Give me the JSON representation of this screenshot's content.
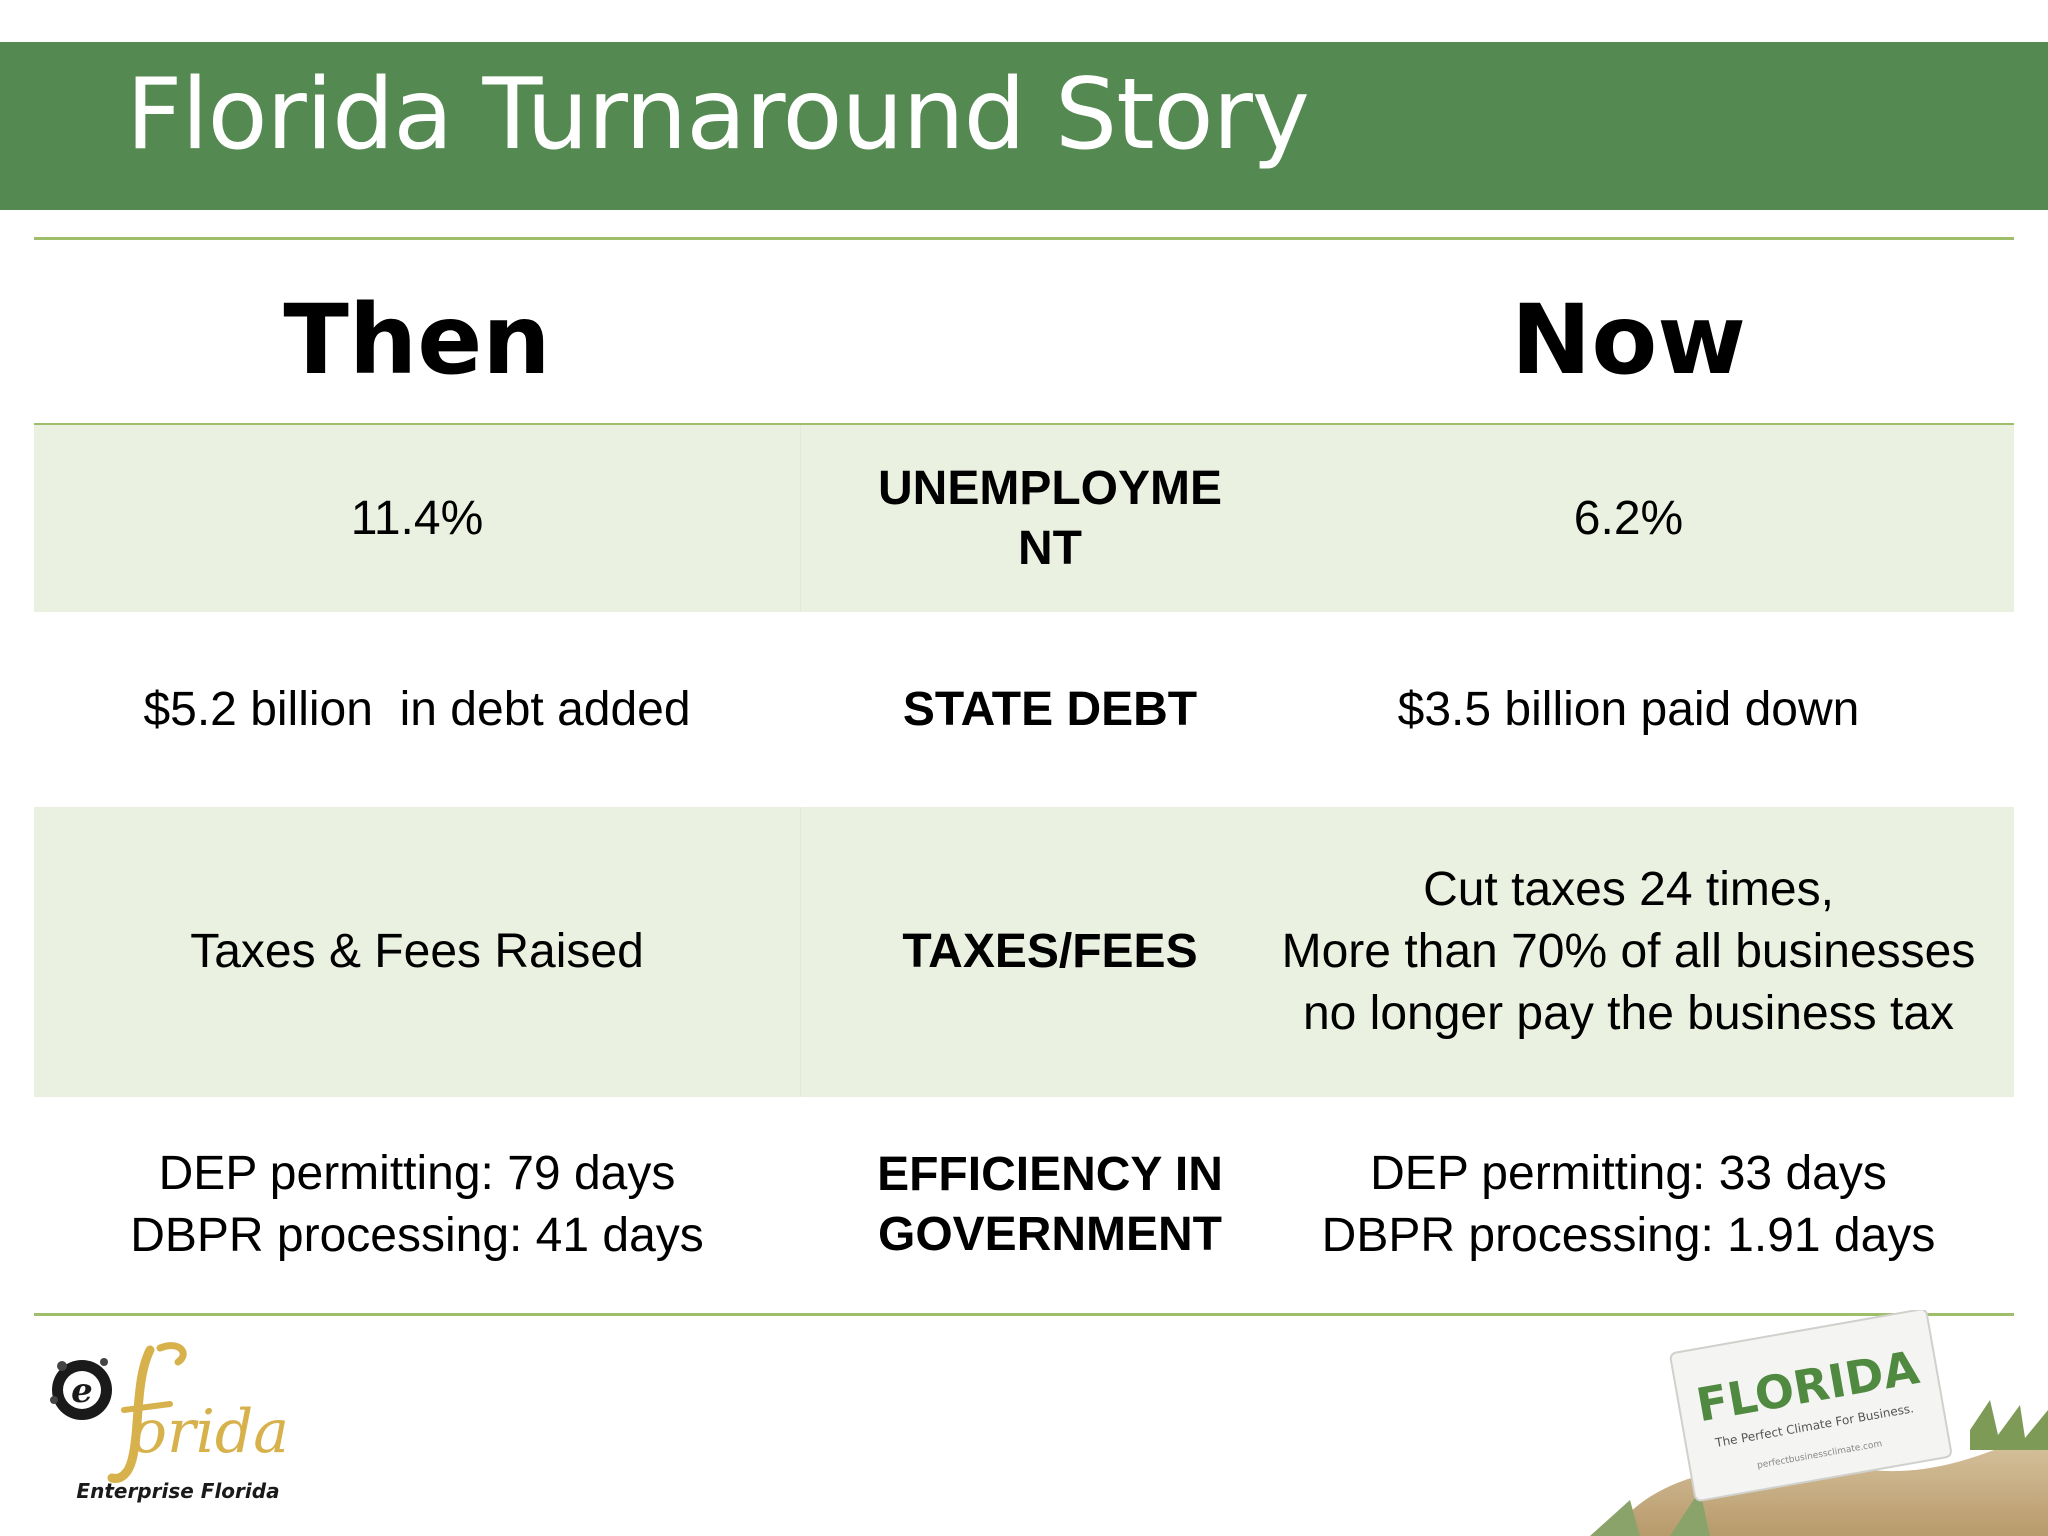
{
  "title": "Florida Turnaround Story",
  "headers": {
    "then": "Then",
    "now": "Now"
  },
  "rows": [
    {
      "then": [
        "11.4%"
      ],
      "topic": [
        "UNEMPLOYME",
        "NT"
      ],
      "now": [
        "6.2%"
      ]
    },
    {
      "then": [
        "$5.2 billion  in debt added"
      ],
      "topic": [
        "STATE DEBT"
      ],
      "now": [
        "$3.5 billion paid down"
      ]
    },
    {
      "then": [
        "Taxes & Fees Raised"
      ],
      "topic": [
        "TAXES/FEES"
      ],
      "now": [
        "Cut taxes 24 times,",
        "More than 70% of all businesses",
        "no longer pay the business tax"
      ]
    },
    {
      "then": [
        "DEP permitting: 79 days",
        "DBPR processing: 41 days"
      ],
      "topic": [
        "EFFICIENCY IN",
        "GOVERNMENT"
      ],
      "now": [
        "DEP permitting: 33 days",
        "DBPR processing: 1.91 days"
      ]
    }
  ],
  "logos": {
    "left": {
      "name": "Enterprise Florida",
      "mark": "florida"
    },
    "right": {
      "name": "FLORIDA",
      "tagline": "The Perfect Climate For Business.",
      "url": "perfectbusinessclimate.com"
    }
  },
  "colors": {
    "title_bar": "#548a52",
    "rule": "#9fbe6a",
    "row_shade": "#ebf1e0"
  }
}
